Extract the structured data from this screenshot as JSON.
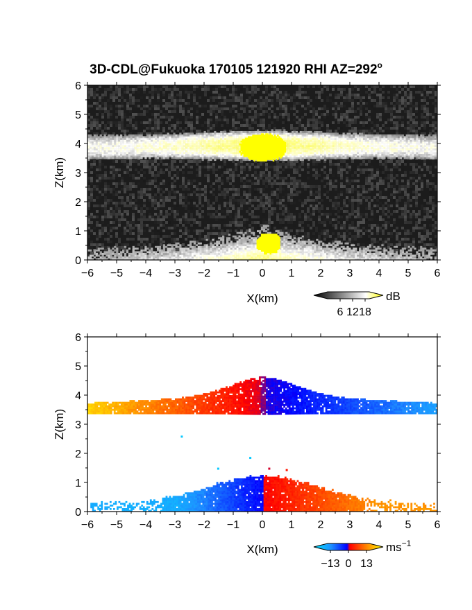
{
  "title": "3D-CDL@Fukuoka 170105 121920 RHI AZ=292",
  "title_sup": "o",
  "chart_data": [
    {
      "type": "heatmap",
      "variable": "reflectivity / intensity",
      "xlabel": "X(km)",
      "ylabel": "Z(km)",
      "xlim": [
        -6,
        6
      ],
      "ylim": [
        0,
        6
      ],
      "xticks": [
        "-6",
        "-5",
        "-4",
        "-3",
        "-2",
        "-1",
        "0",
        "1",
        "2",
        "3",
        "4",
        "5",
        "6"
      ],
      "yticks": [
        "0",
        "1",
        "2",
        "3",
        "4",
        "5",
        "6"
      ],
      "colorbar": {
        "unit": "dB",
        "ticks": [
          "6",
          "12",
          "18"
        ],
        "tick_values": [
          6,
          12,
          18
        ],
        "range": [
          0,
          20
        ],
        "colors": [
          "#000000",
          "#ffffff",
          "#ffff00"
        ]
      },
      "layers": [
        {
          "z_bottom": 3.4,
          "z_top": 4.3,
          "peak_db": 18
        },
        {
          "z_bottom": 0.0,
          "z_top": 1.3,
          "peak_db": 18
        }
      ],
      "saturated_regions": [
        {
          "x": [
            -0.8,
            0.8
          ],
          "z": [
            3.4,
            4.3
          ]
        },
        {
          "x": [
            -0.2,
            0.6
          ],
          "z": [
            0.2,
            0.9
          ]
        }
      ]
    },
    {
      "type": "heatmap",
      "variable": "radial velocity",
      "xlabel": "X(km)",
      "ylabel": "Z(km)",
      "xlim": [
        -6,
        6
      ],
      "ylim": [
        0,
        6
      ],
      "xticks": [
        "-6",
        "-5",
        "-4",
        "-3",
        "-2",
        "-1",
        "0",
        "1",
        "2",
        "3",
        "4",
        "5",
        "6"
      ],
      "yticks": [
        "0",
        "1",
        "2",
        "3",
        "4",
        "5",
        "6"
      ],
      "colorbar": {
        "unit": "ms",
        "unit_sup": "−1",
        "ticks": [
          "−13",
          "0",
          "13"
        ],
        "tick_values": [
          -13,
          0,
          13
        ],
        "range": [
          -15,
          15
        ],
        "colors": [
          "#00e5ff",
          "#1e90ff",
          "#0000ff",
          "#ff0000",
          "#ff8000",
          "#ffff00"
        ]
      },
      "layers": [
        {
          "z_bottom": 3.3,
          "z_top": 4.9,
          "velocity_left_ms": 13,
          "velocity_right_ms": -10
        },
        {
          "z_bottom": 0.0,
          "z_top": 1.5,
          "velocity_left_ms": -11,
          "velocity_right_ms": 10
        }
      ]
    }
  ]
}
